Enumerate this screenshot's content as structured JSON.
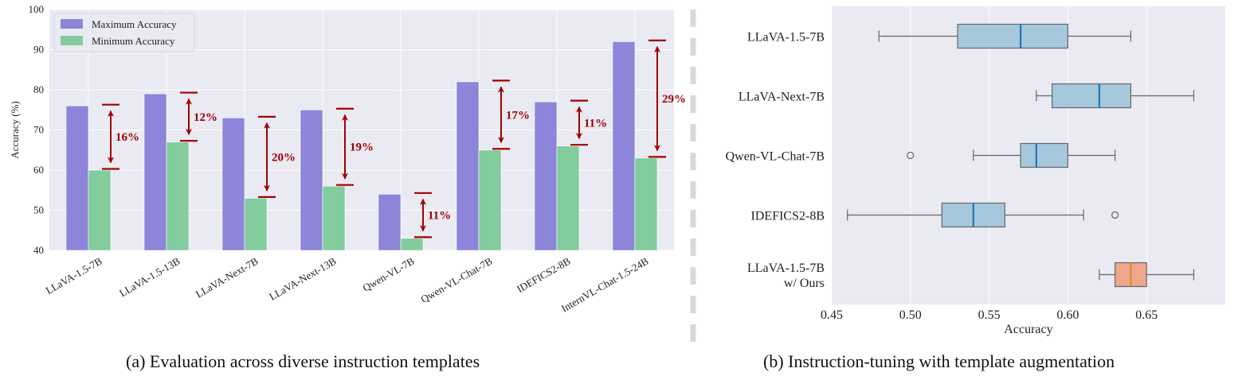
{
  "captions": {
    "a": "(a) Evaluation across diverse instruction templates",
    "b": "(b) Instruction-tuning with template augmentation"
  },
  "colors": {
    "panel_bg": "#eaeaf2",
    "grid": "#ffffff",
    "max_bar": "#8c85d9",
    "min_bar": "#82cc9e",
    "arrow": "#a00000",
    "box_blue": "#a5c8dc",
    "box_orange": "#eea78c",
    "median_blue": "#1f77b4",
    "median_orange": "#d98a2b",
    "whisker": "#666666",
    "divider": "#d9d9d9"
  },
  "chart_data": [
    {
      "type": "bar",
      "title": "",
      "xlabel": "",
      "ylabel": "Accuracy (%)",
      "ylim": [
        40,
        100
      ],
      "yticks": [
        40,
        50,
        60,
        70,
        80,
        90,
        100
      ],
      "grid": true,
      "legend_position": "top-left",
      "categories": [
        "LLaVA-1.5-7B",
        "LLaVA-1.5-13B",
        "LLaVA-Next-7B",
        "LLaVA-Next-13B",
        "Qwen-VL-7B",
        "Qwen-VL-Chat-7B",
        "IDEFICS2-8B",
        "InternVL-Chat-1.5-24B"
      ],
      "series": [
        {
          "name": "Maximum Accuracy",
          "values": [
            76,
            79,
            73,
            75,
            54,
            82,
            77,
            92
          ]
        },
        {
          "name": "Minimum Accuracy",
          "values": [
            60,
            67,
            53,
            56,
            43,
            65,
            66,
            63
          ]
        }
      ],
      "annotations": [
        "16%",
        "12%",
        "20%",
        "19%",
        "11%",
        "17%",
        "11%",
        "29%"
      ]
    },
    {
      "type": "box",
      "title": "",
      "xlabel": "Accuracy",
      "ylabel": "",
      "xlim": [
        0.45,
        0.7
      ],
      "xticks": [
        "0.45",
        "0.50",
        "0.55",
        "0.60",
        "0.65"
      ],
      "grid": true,
      "boxes": [
        {
          "label": [
            "LLaVA-1.5-7B"
          ],
          "whisker_low": 0.48,
          "q1": 0.53,
          "median": 0.57,
          "q3": 0.6,
          "whisker_high": 0.64,
          "outliers": [],
          "highlight": false
        },
        {
          "label": [
            "LLaVA-Next-7B"
          ],
          "whisker_low": 0.58,
          "q1": 0.59,
          "median": 0.62,
          "q3": 0.64,
          "whisker_high": 0.68,
          "outliers": [],
          "highlight": false
        },
        {
          "label": [
            "Qwen-VL-Chat-7B"
          ],
          "whisker_low": 0.54,
          "q1": 0.57,
          "median": 0.58,
          "q3": 0.6,
          "whisker_high": 0.63,
          "outliers": [
            0.5
          ],
          "highlight": false
        },
        {
          "label": [
            "IDEFICS2-8B"
          ],
          "whisker_low": 0.46,
          "q1": 0.52,
          "median": 0.54,
          "q3": 0.56,
          "whisker_high": 0.61,
          "outliers": [
            0.63
          ],
          "highlight": false
        },
        {
          "label": [
            "LLaVA-1.5-7B",
            "w/ Ours"
          ],
          "whisker_low": 0.62,
          "q1": 0.63,
          "median": 0.64,
          "q3": 0.65,
          "whisker_high": 0.68,
          "outliers": [],
          "highlight": true
        }
      ]
    }
  ]
}
